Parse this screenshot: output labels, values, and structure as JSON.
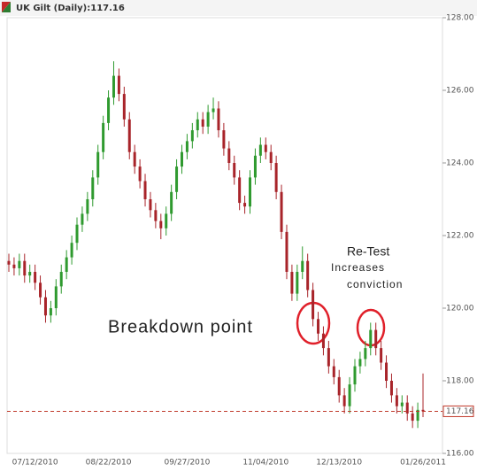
{
  "chart_data": {
    "type": "candlestick",
    "title": "UK Gilt (Daily):117.16",
    "last_price": 117.16,
    "annotations": [
      "Breakdown point",
      "Re-Test",
      "Increases",
      "conviction"
    ],
    "up_color": "#2f9a2f",
    "down_color": "#a8242a",
    "grid": false,
    "ylim": [
      116,
      128
    ],
    "yticks": [
      {
        "value": 116,
        "label": "116.00"
      },
      {
        "value": 118,
        "label": "118.00"
      },
      {
        "value": 120,
        "label": "120.00"
      },
      {
        "value": 122,
        "label": "122.00"
      },
      {
        "value": 124,
        "label": "124.00"
      },
      {
        "value": 126,
        "label": "126.00"
      },
      {
        "value": 128,
        "label": "128.00"
      }
    ],
    "categories": [
      null,
      null,
      null,
      null,
      null,
      "07/12/2010",
      null,
      null,
      null,
      null,
      null,
      null,
      null,
      null,
      null,
      null,
      null,
      null,
      null,
      "08/22/2010",
      null,
      null,
      null,
      null,
      null,
      null,
      null,
      null,
      null,
      null,
      null,
      null,
      null,
      null,
      "09/27/2010",
      null,
      null,
      null,
      null,
      null,
      null,
      null,
      null,
      null,
      null,
      null,
      null,
      null,
      null,
      "11/04/2010",
      null,
      null,
      null,
      null,
      null,
      null,
      null,
      null,
      null,
      null,
      null,
      null,
      null,
      "12/13/2010",
      null,
      null,
      null,
      null,
      null,
      null,
      null,
      null,
      null,
      null,
      null,
      null,
      null,
      null,
      null,
      "01/26/2011"
    ],
    "open": [
      121.3,
      121.2,
      121.1,
      121.3,
      120.9,
      121.0,
      120.7,
      120.3,
      119.8,
      120.0,
      120.6,
      121.0,
      121.4,
      121.8,
      122.3,
      122.6,
      123.0,
      123.6,
      124.3,
      125.1,
      125.8,
      126.4,
      125.9,
      125.2,
      124.3,
      123.9,
      123.5,
      123.0,
      122.7,
      122.4,
      122.2,
      122.6,
      123.2,
      123.9,
      124.3,
      124.6,
      124.9,
      125.2,
      125.0,
      125.4,
      125.5,
      124.9,
      124.4,
      124.0,
      123.6,
      122.9,
      122.8,
      123.6,
      124.2,
      124.5,
      124.3,
      124.0,
      123.2,
      122.1,
      121.0,
      120.4,
      121.0,
      121.3,
      120.5,
      119.7,
      119.3,
      118.9,
      118.4,
      118.1,
      117.6,
      117.3,
      117.9,
      118.4,
      118.6,
      118.9,
      119.4,
      118.9,
      118.5,
      118.0,
      117.6,
      117.3,
      117.4,
      117.1,
      116.9,
      117.2
    ],
    "high": [
      121.5,
      121.4,
      121.5,
      121.5,
      121.2,
      121.2,
      120.9,
      120.5,
      120.2,
      120.8,
      121.2,
      121.6,
      122.0,
      122.5,
      122.8,
      123.2,
      123.8,
      124.5,
      125.3,
      126.0,
      126.8,
      126.6,
      126.1,
      125.4,
      124.5,
      124.1,
      123.7,
      123.2,
      122.9,
      122.6,
      122.8,
      123.4,
      124.1,
      124.5,
      124.8,
      125.1,
      125.4,
      125.4,
      125.6,
      125.8,
      125.7,
      125.1,
      124.6,
      124.2,
      123.8,
      123.1,
      123.8,
      124.4,
      124.7,
      124.7,
      124.5,
      124.2,
      123.4,
      122.3,
      121.2,
      121.2,
      121.7,
      121.5,
      120.7,
      119.9,
      119.5,
      119.1,
      118.6,
      118.3,
      117.8,
      118.1,
      118.6,
      118.8,
      119.1,
      119.6,
      119.6,
      119.1,
      118.7,
      118.2,
      117.8,
      117.6,
      117.6,
      117.3,
      117.4,
      118.2
    ],
    "low": [
      121.0,
      120.9,
      120.9,
      120.7,
      120.7,
      120.5,
      120.1,
      119.6,
      119.6,
      119.8,
      120.4,
      120.8,
      121.2,
      121.6,
      122.1,
      122.4,
      122.8,
      123.4,
      124.1,
      124.9,
      125.6,
      125.7,
      125.0,
      124.1,
      123.7,
      123.3,
      122.8,
      122.5,
      122.2,
      121.9,
      122.0,
      122.4,
      123.0,
      123.7,
      124.1,
      124.4,
      124.7,
      124.8,
      124.8,
      125.2,
      124.7,
      124.2,
      123.8,
      123.4,
      122.7,
      122.6,
      122.6,
      123.4,
      124.0,
      124.1,
      123.8,
      123.0,
      121.9,
      120.8,
      120.2,
      120.2,
      120.8,
      120.3,
      119.5,
      119.1,
      118.7,
      118.2,
      117.9,
      117.4,
      117.1,
      117.1,
      117.7,
      118.2,
      118.4,
      118.7,
      118.7,
      118.3,
      117.8,
      117.4,
      117.1,
      117.1,
      116.9,
      116.7,
      116.7,
      117.0
    ],
    "close": [
      121.2,
      121.1,
      121.3,
      120.9,
      121.0,
      120.7,
      120.3,
      119.8,
      120.0,
      120.6,
      121.0,
      121.4,
      121.8,
      122.3,
      122.6,
      123.0,
      123.6,
      124.3,
      125.1,
      125.8,
      126.4,
      125.9,
      125.2,
      124.3,
      123.9,
      123.5,
      123.0,
      122.7,
      122.4,
      122.2,
      122.6,
      123.2,
      123.9,
      124.3,
      124.6,
      124.9,
      125.2,
      125.0,
      125.4,
      125.5,
      124.9,
      124.4,
      124.0,
      123.6,
      122.9,
      122.8,
      123.6,
      124.2,
      124.5,
      124.3,
      124.0,
      123.2,
      122.1,
      121.0,
      120.4,
      121.0,
      121.3,
      120.5,
      119.7,
      119.3,
      118.9,
      118.4,
      118.1,
      117.6,
      117.3,
      117.9,
      118.4,
      118.6,
      118.9,
      119.4,
      118.9,
      118.5,
      118.0,
      117.6,
      117.3,
      117.4,
      117.1,
      116.9,
      117.2,
      117.16
    ]
  }
}
